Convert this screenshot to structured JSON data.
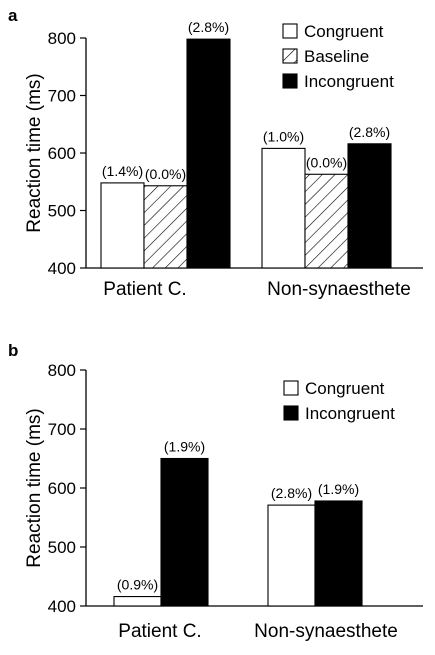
{
  "chart_data": [
    {
      "panel_label": "a",
      "type": "bar",
      "ylabel": "Reaction time (ms)",
      "ylim": [
        400,
        800
      ],
      "yticks": [
        "400",
        "500",
        "600",
        "700",
        "800"
      ],
      "categories": [
        "Patient C.",
        "Non-synaesthete"
      ],
      "legend_position": "top-right",
      "series": [
        {
          "name": "Congruent",
          "pattern": "white",
          "values": [
            548,
            608
          ],
          "labels": [
            "(1.4%)",
            "(1.0%)"
          ]
        },
        {
          "name": "Baseline",
          "pattern": "hatched",
          "values": [
            543,
            563
          ],
          "labels": [
            "(0.0%)",
            "(0.0%)"
          ]
        },
        {
          "name": "Incongruent",
          "pattern": "black",
          "values": [
            798,
            616
          ],
          "labels": [
            "(2.8%)",
            "(2.8%)"
          ]
        }
      ]
    },
    {
      "panel_label": "b",
      "type": "bar",
      "ylabel": "Reaction time (ms)",
      "ylim": [
        400,
        800
      ],
      "yticks": [
        "400",
        "500",
        "600",
        "700",
        "800"
      ],
      "categories": [
        "Patient C.",
        "Non-synaesthete"
      ],
      "legend_position": "top-right",
      "series": [
        {
          "name": "Congruent",
          "pattern": "white",
          "values": [
            416,
            571
          ],
          "labels": [
            "(0.9%)",
            "(2.8%)"
          ]
        },
        {
          "name": "Incongruent",
          "pattern": "black",
          "values": [
            650,
            578
          ],
          "labels": [
            "(1.9%)",
            "(1.9%)"
          ]
        }
      ]
    }
  ]
}
